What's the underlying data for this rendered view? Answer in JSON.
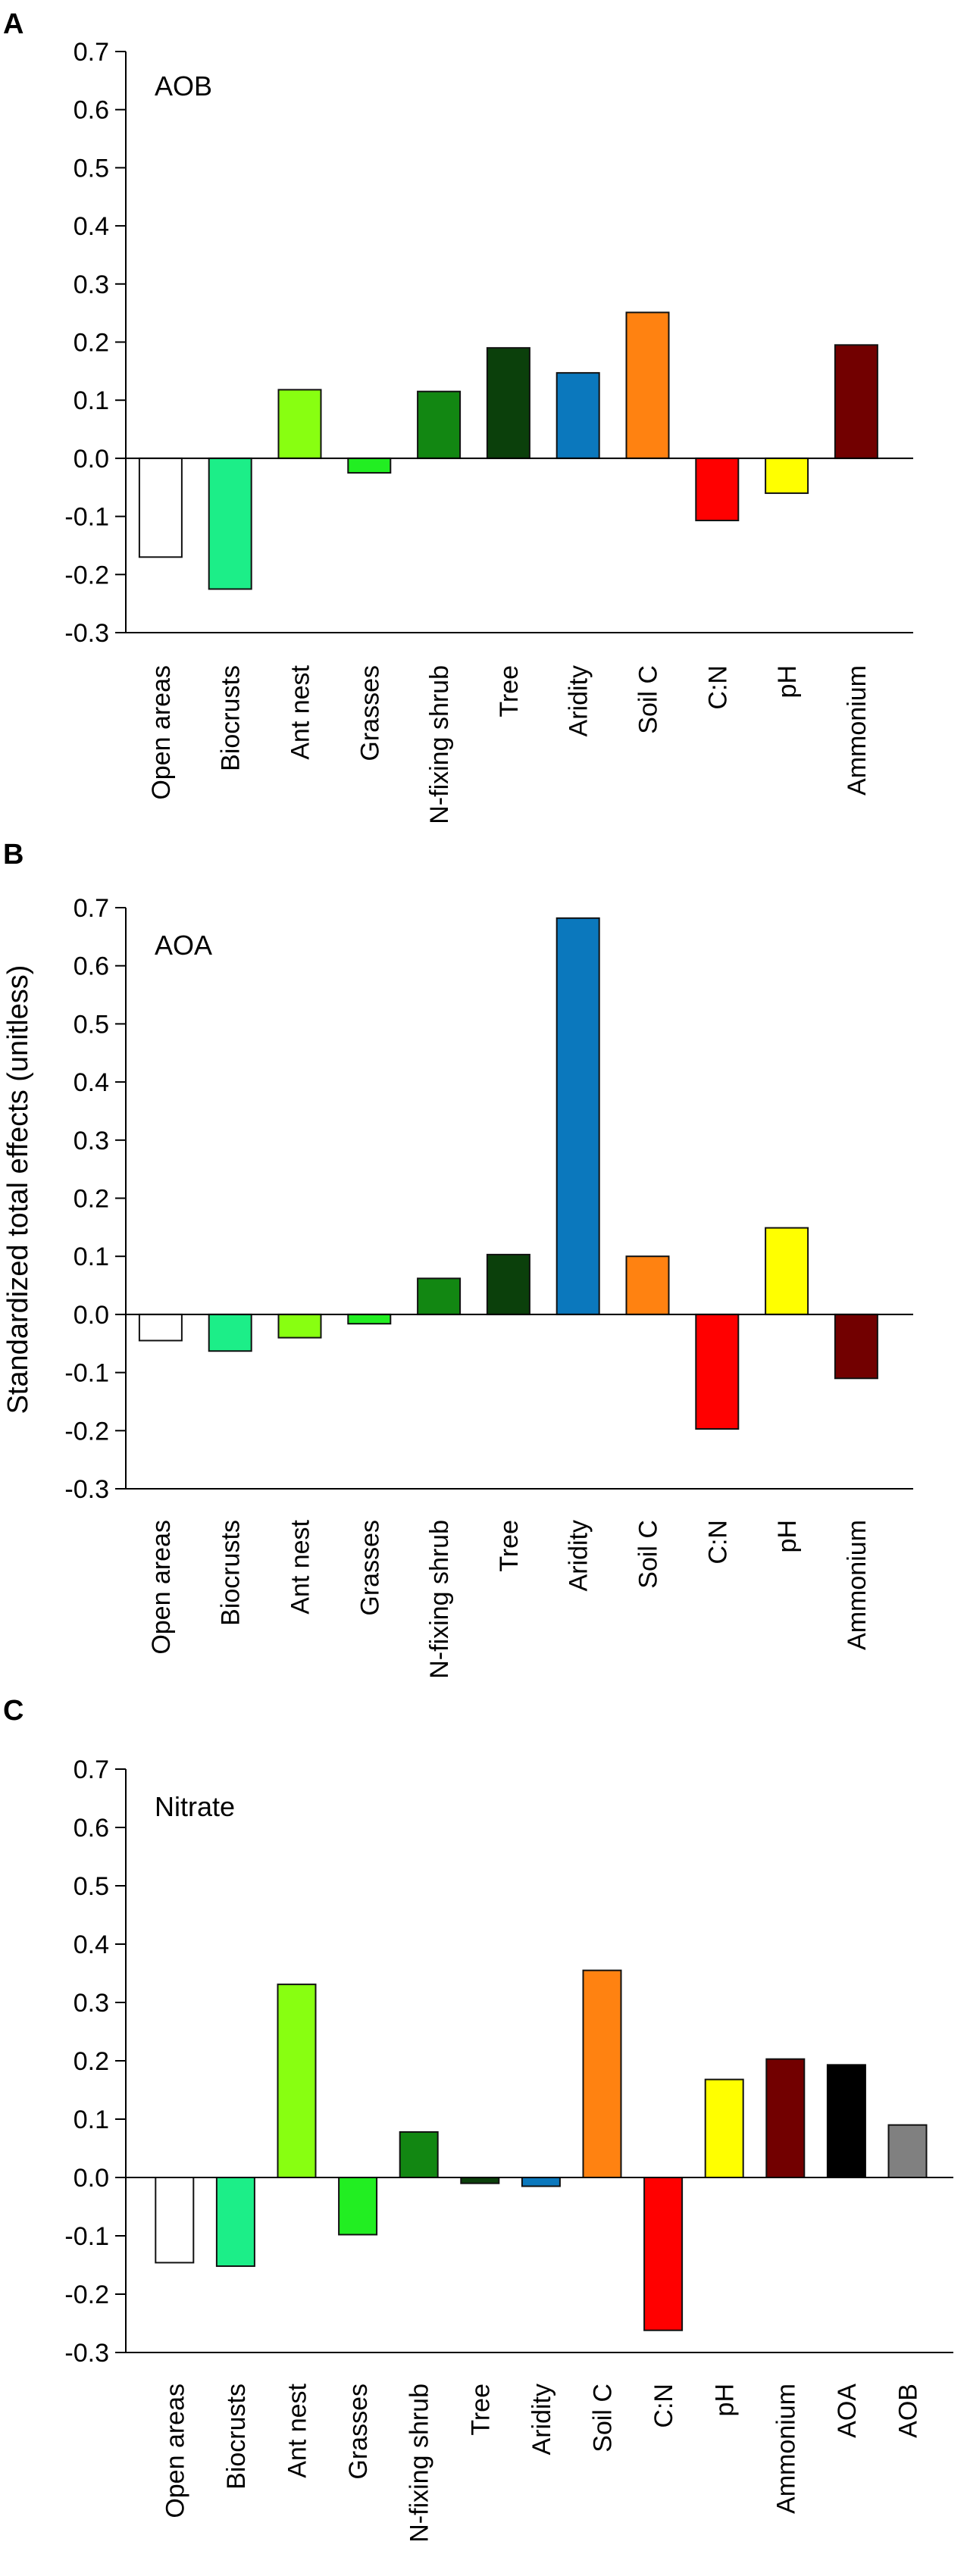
{
  "figure": {
    "shared_ylabel": "Standardized total effects (unitless)"
  },
  "chart_data": [
    {
      "type": "bar",
      "panel_label": "A",
      "title": "AOB",
      "xlabel": "",
      "ylabel": "",
      "ylim": [
        -0.3,
        0.7
      ],
      "yticks": [
        "0.7",
        "0.6",
        "0.5",
        "0.4",
        "0.3",
        "0.2",
        "0.1",
        "0.0",
        "-0.1",
        "-0.2",
        "-0.3"
      ],
      "categories": [
        "Open areas",
        "Biocrusts",
        "Ant nest",
        "Grasses",
        "N-fixing shrub",
        "Tree",
        "Aridity",
        "Soil C",
        "C:N",
        "pH",
        "Ammonium"
      ],
      "values": [
        -0.17,
        -0.225,
        0.118,
        -0.025,
        0.115,
        0.19,
        0.147,
        0.251,
        -0.107,
        -0.06,
        0.195
      ],
      "colors": [
        "#ffffff",
        "#1cee88",
        "#88ff11",
        "#22ee22",
        "#128712",
        "#0b400b",
        "#0b78bd",
        "#ff8211",
        "#ff0000",
        "#ffff00",
        "#720000"
      ]
    },
    {
      "type": "bar",
      "panel_label": "B",
      "title": "AOA",
      "xlabel": "",
      "ylabel": "Standardized total effects (unitless)",
      "ylim": [
        -0.3,
        0.7
      ],
      "yticks": [
        "0.7",
        "0.6",
        "0.5",
        "0.4",
        "0.3",
        "0.2",
        "0.1",
        "0.0",
        "-0.1",
        "-0.2",
        "-0.3"
      ],
      "categories": [
        "Open areas",
        "Biocrusts",
        "Ant nest",
        "Grasses",
        "N-fixing shrub",
        "Tree",
        "Aridity",
        "Soil C",
        "C:N",
        "pH",
        "Ammonium"
      ],
      "values": [
        -0.045,
        -0.063,
        -0.04,
        -0.016,
        0.062,
        0.103,
        0.682,
        0.1,
        -0.197,
        0.149,
        -0.11
      ],
      "colors": [
        "#ffffff",
        "#1cee88",
        "#88ff11",
        "#22ee22",
        "#128712",
        "#0b400b",
        "#0b78bd",
        "#ff8211",
        "#ff0000",
        "#ffff00",
        "#720000"
      ]
    },
    {
      "type": "bar",
      "panel_label": "C",
      "title": "Nitrate",
      "xlabel": "",
      "ylabel": "",
      "ylim": [
        -0.3,
        0.7
      ],
      "yticks": [
        "0.7",
        "0.6",
        "0.5",
        "0.4",
        "0.3",
        "0.2",
        "0.1",
        "0.0",
        "-0.1",
        "-0.2",
        "-0.3"
      ],
      "categories": [
        "Open areas",
        "Biocrusts",
        "Ant nest",
        "Grasses",
        "N-fixing shrub",
        "Tree",
        "Aridity",
        "Soil C",
        "C:N",
        "pH",
        "Ammonium",
        "AOA",
        "AOB"
      ],
      "values": [
        -0.146,
        -0.152,
        0.331,
        -0.098,
        0.078,
        -0.01,
        -0.015,
        0.355,
        -0.262,
        0.168,
        0.203,
        0.193,
        0.09
      ],
      "colors": [
        "#ffffff",
        "#1cee88",
        "#88ff11",
        "#22ee22",
        "#128712",
        "#0b400b",
        "#0b78bd",
        "#ff8211",
        "#ff0000",
        "#ffff00",
        "#720000",
        "#000000",
        "#808080"
      ]
    }
  ]
}
